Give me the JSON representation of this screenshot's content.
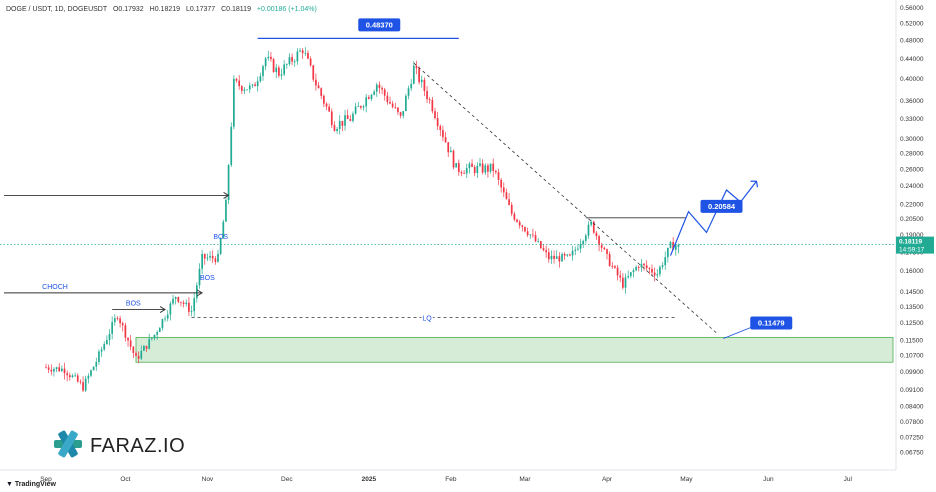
{
  "header": {
    "symbol": "DOGE / USDT, 1D, DOGEUSDT",
    "open": "O0.17932",
    "high": "H0.18219",
    "low": "L0.17377",
    "close": "C0.18119",
    "change": "+0.00186 (+1.04%)"
  },
  "footer": {
    "brand": "TradingView"
  },
  "logo": {
    "text": "FARAZ.IO"
  },
  "colors": {
    "up": "#22ab94",
    "down": "#f23645",
    "accent": "#1e53e5",
    "zone": "#c8e6c9"
  },
  "chart_data": {
    "type": "candlestick",
    "title": "",
    "y_scale": "log",
    "ylim": [
      0.061,
      0.56
    ],
    "y_ticks": [
      "0.56000",
      "0.52000",
      "0.48000",
      "0.44000",
      "0.40000",
      "0.36000",
      "0.33000",
      "0.30000",
      "0.28000",
      "0.26000",
      "0.24000",
      "0.22000",
      "0.20500",
      "0.19000",
      "0.17500",
      "0.16000",
      "0.14500",
      "0.13500",
      "0.12500",
      "0.11500",
      "0.10700",
      "0.09900",
      "0.09100",
      "0.08400",
      "0.07800",
      "0.07250",
      "0.06750"
    ],
    "x_ticks": [
      "Sep",
      "Oct",
      "Nov",
      "Dec",
      "2025",
      "Feb",
      "Mar",
      "Apr",
      "May",
      "Jun",
      "Jul"
    ],
    "price_label": {
      "value": "0.18119",
      "countdown": "14:59:17"
    },
    "anchors": [
      {
        "date": "2024-09-01",
        "close": 0.101
      },
      {
        "date": "2024-09-08",
        "close": 0.1
      },
      {
        "date": "2024-09-15",
        "close": 0.092
      },
      {
        "date": "2024-09-20",
        "close": 0.104
      },
      {
        "date": "2024-09-28",
        "close": 0.13
      },
      {
        "date": "2024-10-05",
        "close": 0.105
      },
      {
        "date": "2024-10-12",
        "close": 0.118
      },
      {
        "date": "2024-10-20",
        "close": 0.142
      },
      {
        "date": "2024-10-26",
        "close": 0.132
      },
      {
        "date": "2024-10-30",
        "close": 0.17
      },
      {
        "date": "2024-11-05",
        "close": 0.17
      },
      {
        "date": "2024-11-08",
        "close": 0.22
      },
      {
        "date": "2024-11-11",
        "close": 0.39
      },
      {
        "date": "2024-11-18",
        "close": 0.38
      },
      {
        "date": "2024-11-23",
        "close": 0.44
      },
      {
        "date": "2024-11-28",
        "close": 0.41
      },
      {
        "date": "2024-12-07",
        "close": 0.46
      },
      {
        "date": "2024-12-12",
        "close": 0.39
      },
      {
        "date": "2024-12-19",
        "close": 0.32
      },
      {
        "date": "2024-12-25",
        "close": 0.33
      },
      {
        "date": "2025-01-04",
        "close": 0.39
      },
      {
        "date": "2025-01-13",
        "close": 0.33
      },
      {
        "date": "2025-01-18",
        "close": 0.42
      },
      {
        "date": "2025-01-25",
        "close": 0.35
      },
      {
        "date": "2025-02-03",
        "close": 0.26
      },
      {
        "date": "2025-02-10",
        "close": 0.26
      },
      {
        "date": "2025-02-17",
        "close": 0.26
      },
      {
        "date": "2025-02-24",
        "close": 0.21
      },
      {
        "date": "2025-03-03",
        "close": 0.19
      },
      {
        "date": "2025-03-10",
        "close": 0.17
      },
      {
        "date": "2025-03-18",
        "close": 0.17
      },
      {
        "date": "2025-03-26",
        "close": 0.2
      },
      {
        "date": "2025-04-01",
        "close": 0.17
      },
      {
        "date": "2025-04-07",
        "close": 0.15
      },
      {
        "date": "2025-04-13",
        "close": 0.165
      },
      {
        "date": "2025-04-20",
        "close": 0.158
      },
      {
        "date": "2025-04-25",
        "close": 0.18
      },
      {
        "date": "2025-04-28",
        "close": 0.181
      }
    ],
    "levels": {
      "top": {
        "value": "0.48370",
        "y": 0.4837
      },
      "projection_target": {
        "value": "0.20584",
        "y": 0.20584
      },
      "support": {
        "value": "0.11479",
        "y": 0.11479
      },
      "lq": {
        "label": "LQ",
        "y": 0.128
      },
      "demand_zone": {
        "low": 0.1035,
        "high": 0.1165
      }
    },
    "annotations": [
      "CHOCH",
      "BOS",
      "BOS",
      "BOS",
      "LQ"
    ]
  }
}
